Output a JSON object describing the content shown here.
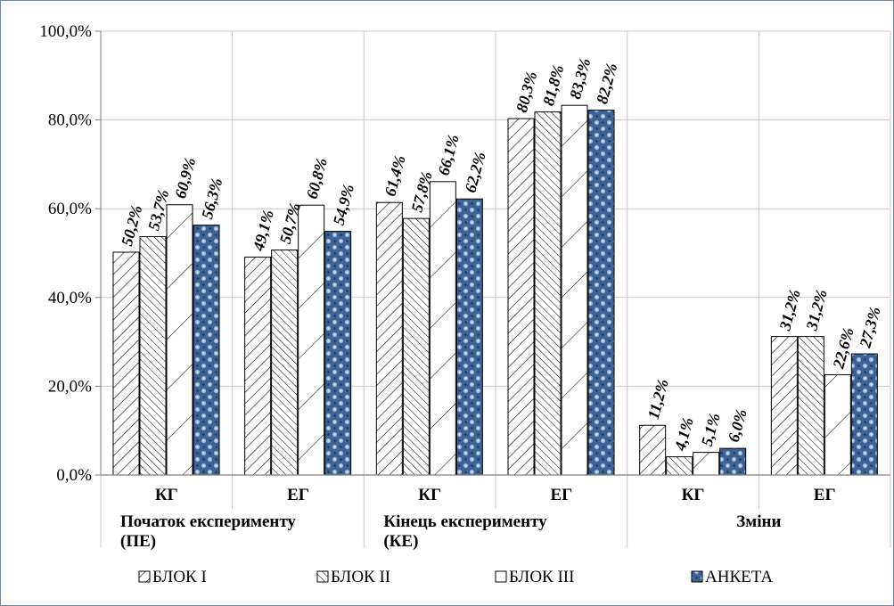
{
  "chart_data": {
    "type": "bar",
    "title": "",
    "ylim": [
      0,
      100
    ],
    "y_ticks": [
      "0,0%",
      "20,0%",
      "40,0%",
      "60,0%",
      "80,0%",
      "100,0%"
    ],
    "grid": true,
    "legend_position": "bottom",
    "groups": [
      {
        "label_lines": [
          "Початок експерименту",
          "(ПЕ)"
        ],
        "categories": [
          "КГ",
          "ЕГ"
        ]
      },
      {
        "label_lines": [
          "Кінець експерименту",
          "(КЕ)"
        ],
        "categories": [
          "КГ",
          "ЕГ"
        ]
      },
      {
        "label_lines": [
          "Зміни"
        ],
        "categories": [
          "КГ",
          "ЕГ"
        ]
      }
    ],
    "categories": [
      "КГ",
      "ЕГ",
      "КГ",
      "ЕГ",
      "КГ",
      "ЕГ"
    ],
    "series": [
      {
        "name": "БЛОК I",
        "values": [
          50.2,
          49.1,
          61.4,
          80.3,
          11.2,
          31.2
        ],
        "labels": [
          "50,2%",
          "49,1%",
          "61,4%",
          "80,3%",
          "11,2%",
          "31,2%"
        ]
      },
      {
        "name": "БЛОК II",
        "values": [
          53.7,
          50.7,
          57.8,
          81.8,
          4.1,
          31.2
        ],
        "labels": [
          "53,7%",
          "50,7%",
          "57,8%",
          "81,8%",
          "4,1%",
          "31,2%"
        ]
      },
      {
        "name": "БЛОК III",
        "values": [
          60.9,
          60.8,
          66.1,
          83.3,
          5.1,
          22.6
        ],
        "labels": [
          "60,9%",
          "60,8%",
          "66,1%",
          "83,3%",
          "5,1%",
          "22,6%"
        ]
      },
      {
        "name": "АНКЕТА",
        "values": [
          56.3,
          54.9,
          62.2,
          82.2,
          6.0,
          27.3
        ],
        "labels": [
          "56,3%",
          "54,9%",
          "62,2%",
          "82,2%",
          "6,0%",
          "27,3%"
        ]
      }
    ],
    "series_fills": [
      "hatch-forward",
      "hatch-back",
      "hatch-sparse",
      "textured-blue"
    ],
    "colors": {
      "axis": "#808080",
      "grid": "#c8c8c8",
      "anketa": "#3d6396",
      "anketa_light": "#9fb7d6",
      "frame": "#6b86a8"
    }
  }
}
